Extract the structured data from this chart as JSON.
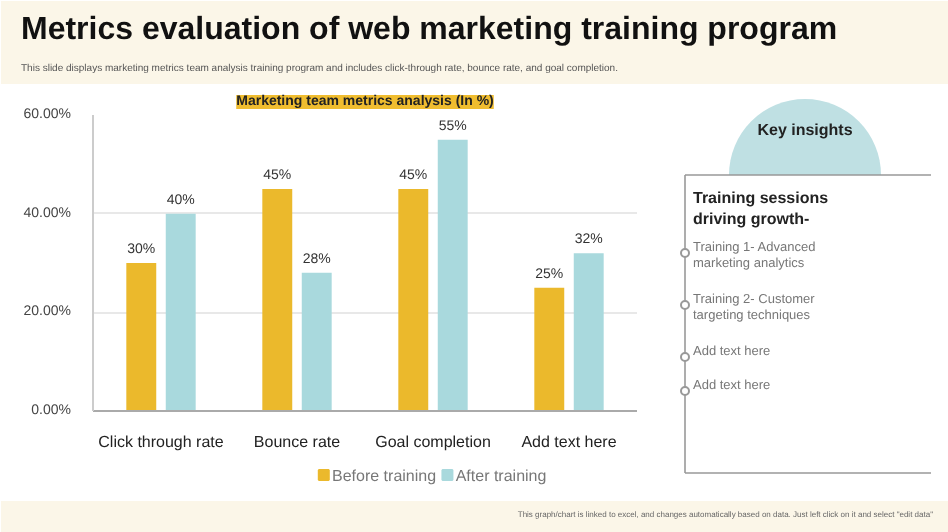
{
  "chart_data": [
    {
      "type": "bar",
      "title": "Metrics evaluation of web marketing training program",
      "subtitle": "This slide displays marketing metrics team analysis training program and includes click-through rate, bounce rate, and goal completion.",
      "annotations": [
        "Marketing team metrics analysis (In %)",
        "This graph/chart is linked to excel, and changes automatically based on data. Just left click on it and select \"edit data\""
      ],
      "categories": [
        "Click through rate",
        "Bounce rate",
        "Goal completion",
        "Add text here"
      ],
      "series": [
        {
          "name": "Before training",
          "color": "#ebb92c",
          "values": [
            30,
            45,
            45,
            25
          ],
          "value_labels": [
            "30%",
            "45%",
            "45%",
            "25%"
          ]
        },
        {
          "name": "After training",
          "color": "#a9d9dd",
          "values": [
            40,
            28,
            55,
            32
          ],
          "value_labels": [
            "40%",
            "28%",
            "55%",
            "32%"
          ]
        }
      ],
      "ylim": [
        0,
        60
      ],
      "yticks": [
        {
          "value": 0,
          "label": "0.00%"
        },
        {
          "value": 20,
          "label": "20.00%"
        },
        {
          "value": 40,
          "label": "40.00%"
        },
        {
          "value": 60,
          "label": "60.00%"
        }
      ],
      "grid": "y",
      "legend": "bottom"
    },
    {
      "type": "other",
      "title": "Key insights",
      "annotations": [
        "Training sessions driving growth-",
        "Training 1- Advanced marketing analytics",
        "Training 2- Customer targeting techniques",
        "Add text here",
        "Add text here"
      ]
    }
  ]
}
